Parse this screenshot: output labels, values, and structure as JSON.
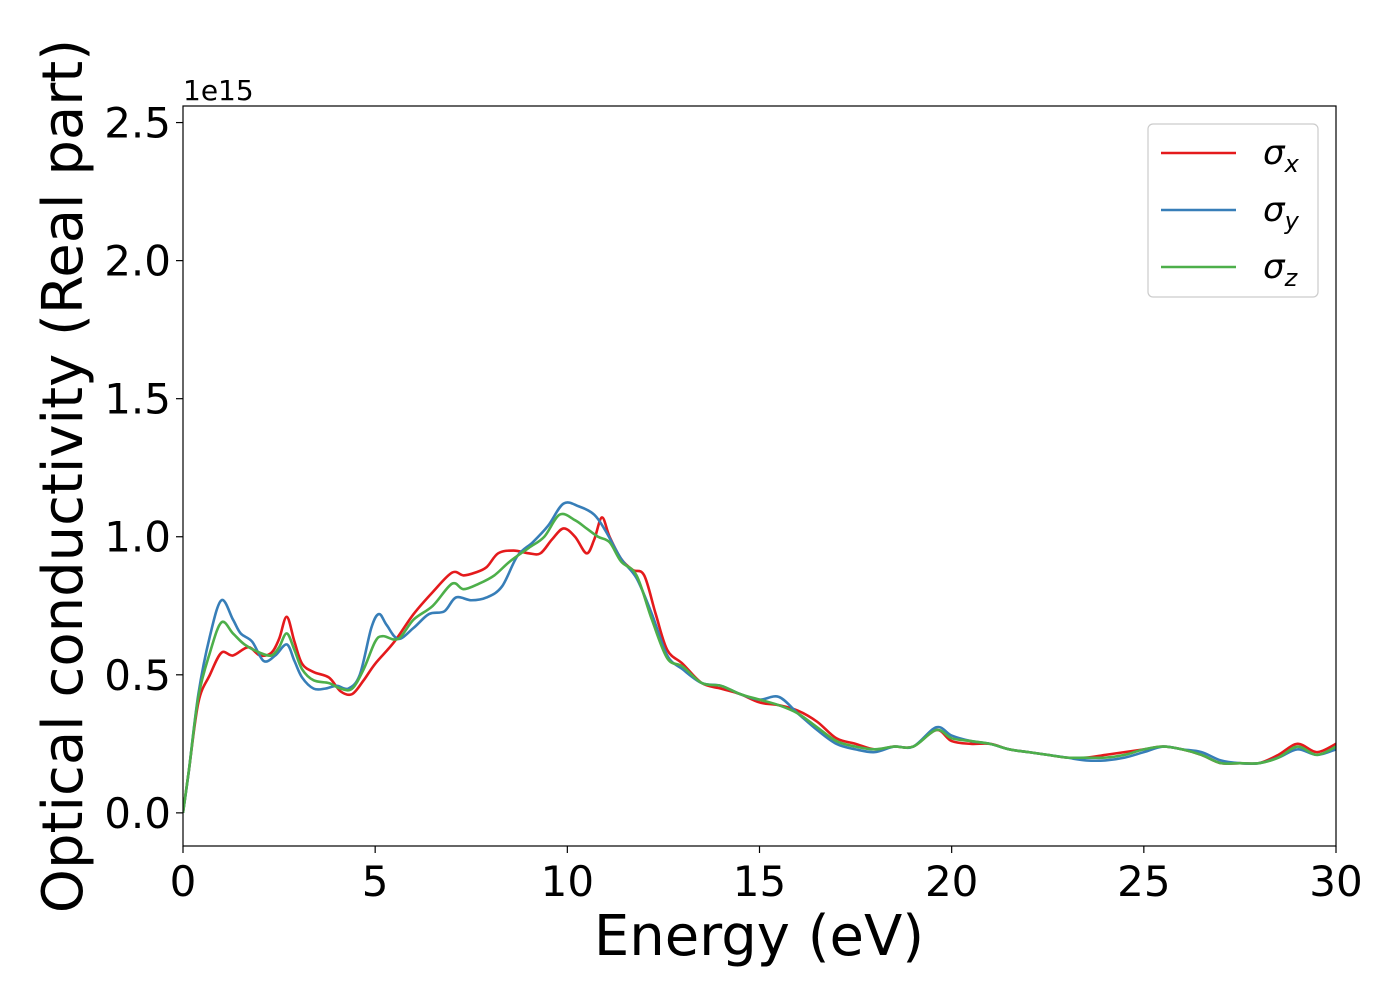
{
  "chart_data": {
    "type": "line",
    "xlabel": "Energy (eV)",
    "ylabel": "Optical conductivity (Real part)",
    "offset_text": "1e15",
    "xlim": [
      0,
      30
    ],
    "ylim": [
      -0.12,
      2.56
    ],
    "x_ticks": [
      0,
      5,
      10,
      15,
      20,
      25,
      30
    ],
    "x_tick_labels": [
      "0",
      "5",
      "10",
      "15",
      "20",
      "25",
      "30"
    ],
    "y_ticks": [
      0.0,
      0.5,
      1.0,
      1.5,
      2.0,
      2.5
    ],
    "y_tick_labels": [
      "0.0",
      "0.5",
      "1.0",
      "1.5",
      "2.0",
      "2.5"
    ],
    "grid": false,
    "legend_position": "top-right",
    "series": [
      {
        "name": "σx",
        "label_main": "σ",
        "label_sub": "x",
        "color": "#e41a1c",
        "points": [
          [
            0,
            0
          ],
          [
            0.15,
            0.15
          ],
          [
            0.4,
            0.4
          ],
          [
            0.7,
            0.5
          ],
          [
            1.0,
            0.58
          ],
          [
            1.3,
            0.57
          ],
          [
            1.7,
            0.6
          ],
          [
            2.0,
            0.57
          ],
          [
            2.3,
            0.58
          ],
          [
            2.5,
            0.63
          ],
          [
            2.7,
            0.71
          ],
          [
            2.9,
            0.62
          ],
          [
            3.1,
            0.54
          ],
          [
            3.4,
            0.51
          ],
          [
            3.8,
            0.49
          ],
          [
            4.1,
            0.44
          ],
          [
            4.4,
            0.43
          ],
          [
            4.7,
            0.48
          ],
          [
            5.0,
            0.54
          ],
          [
            5.5,
            0.62
          ],
          [
            6.0,
            0.72
          ],
          [
            6.5,
            0.8
          ],
          [
            7.0,
            0.87
          ],
          [
            7.3,
            0.86
          ],
          [
            7.6,
            0.87
          ],
          [
            7.9,
            0.89
          ],
          [
            8.2,
            0.94
          ],
          [
            8.6,
            0.95
          ],
          [
            9.0,
            0.94
          ],
          [
            9.3,
            0.94
          ],
          [
            9.6,
            0.99
          ],
          [
            9.9,
            1.03
          ],
          [
            10.2,
            1.0
          ],
          [
            10.5,
            0.94
          ],
          [
            10.7,
            0.99
          ],
          [
            10.9,
            1.07
          ],
          [
            11.1,
            1.0
          ],
          [
            11.4,
            0.92
          ],
          [
            11.7,
            0.88
          ],
          [
            12.0,
            0.86
          ],
          [
            12.3,
            0.72
          ],
          [
            12.6,
            0.59
          ],
          [
            13.0,
            0.54
          ],
          [
            13.5,
            0.47
          ],
          [
            14.0,
            0.45
          ],
          [
            14.5,
            0.43
          ],
          [
            15.0,
            0.4
          ],
          [
            15.5,
            0.39
          ],
          [
            16.0,
            0.37
          ],
          [
            16.5,
            0.33
          ],
          [
            17.0,
            0.27
          ],
          [
            17.5,
            0.25
          ],
          [
            18.0,
            0.23
          ],
          [
            18.5,
            0.24
          ],
          [
            19.0,
            0.24
          ],
          [
            19.6,
            0.3
          ],
          [
            20.0,
            0.26
          ],
          [
            20.5,
            0.25
          ],
          [
            21.0,
            0.25
          ],
          [
            21.5,
            0.23
          ],
          [
            22.0,
            0.22
          ],
          [
            22.5,
            0.21
          ],
          [
            23.0,
            0.2
          ],
          [
            23.5,
            0.2
          ],
          [
            24.0,
            0.21
          ],
          [
            24.5,
            0.22
          ],
          [
            25.0,
            0.23
          ],
          [
            25.5,
            0.24
          ],
          [
            26.0,
            0.23
          ],
          [
            26.5,
            0.21
          ],
          [
            27.0,
            0.18
          ],
          [
            27.5,
            0.18
          ],
          [
            28.0,
            0.18
          ],
          [
            28.5,
            0.21
          ],
          [
            29.0,
            0.25
          ],
          [
            29.5,
            0.22
          ],
          [
            30.0,
            0.25
          ]
        ]
      },
      {
        "name": "σy",
        "label_main": "σ",
        "label_sub": "y",
        "color": "#377eb8",
        "points": [
          [
            0,
            0
          ],
          [
            0.15,
            0.15
          ],
          [
            0.4,
            0.43
          ],
          [
            0.7,
            0.64
          ],
          [
            1.0,
            0.77
          ],
          [
            1.3,
            0.7
          ],
          [
            1.5,
            0.65
          ],
          [
            1.8,
            0.62
          ],
          [
            2.1,
            0.55
          ],
          [
            2.4,
            0.57
          ],
          [
            2.7,
            0.61
          ],
          [
            2.9,
            0.55
          ],
          [
            3.1,
            0.49
          ],
          [
            3.4,
            0.45
          ],
          [
            3.7,
            0.45
          ],
          [
            4.0,
            0.46
          ],
          [
            4.3,
            0.45
          ],
          [
            4.6,
            0.5
          ],
          [
            4.9,
            0.67
          ],
          [
            5.1,
            0.72
          ],
          [
            5.3,
            0.68
          ],
          [
            5.6,
            0.63
          ],
          [
            6.0,
            0.67
          ],
          [
            6.4,
            0.72
          ],
          [
            6.8,
            0.73
          ],
          [
            7.1,
            0.78
          ],
          [
            7.5,
            0.77
          ],
          [
            7.9,
            0.78
          ],
          [
            8.3,
            0.82
          ],
          [
            8.7,
            0.93
          ],
          [
            9.1,
            0.98
          ],
          [
            9.5,
            1.04
          ],
          [
            9.9,
            1.12
          ],
          [
            10.3,
            1.11
          ],
          [
            10.7,
            1.08
          ],
          [
            11.0,
            1.02
          ],
          [
            11.4,
            0.92
          ],
          [
            11.8,
            0.85
          ],
          [
            12.2,
            0.72
          ],
          [
            12.6,
            0.57
          ],
          [
            13.0,
            0.52
          ],
          [
            13.5,
            0.47
          ],
          [
            14.0,
            0.46
          ],
          [
            14.5,
            0.43
          ],
          [
            15.0,
            0.41
          ],
          [
            15.5,
            0.42
          ],
          [
            16.0,
            0.36
          ],
          [
            16.5,
            0.3
          ],
          [
            17.0,
            0.25
          ],
          [
            17.5,
            0.23
          ],
          [
            18.0,
            0.22
          ],
          [
            18.5,
            0.24
          ],
          [
            19.0,
            0.24
          ],
          [
            19.6,
            0.31
          ],
          [
            20.0,
            0.28
          ],
          [
            20.5,
            0.26
          ],
          [
            21.0,
            0.25
          ],
          [
            21.5,
            0.23
          ],
          [
            22.0,
            0.22
          ],
          [
            22.5,
            0.21
          ],
          [
            23.0,
            0.2
          ],
          [
            23.5,
            0.19
          ],
          [
            24.0,
            0.19
          ],
          [
            24.5,
            0.2
          ],
          [
            25.0,
            0.22
          ],
          [
            25.5,
            0.24
          ],
          [
            26.0,
            0.23
          ],
          [
            26.5,
            0.22
          ],
          [
            27.0,
            0.19
          ],
          [
            27.5,
            0.18
          ],
          [
            28.0,
            0.18
          ],
          [
            28.5,
            0.2
          ],
          [
            29.0,
            0.23
          ],
          [
            29.5,
            0.21
          ],
          [
            30.0,
            0.23
          ]
        ]
      },
      {
        "name": "σz",
        "label_main": "σ",
        "label_sub": "z",
        "color": "#4daf4a",
        "points": [
          [
            0,
            0
          ],
          [
            0.15,
            0.15
          ],
          [
            0.4,
            0.42
          ],
          [
            0.7,
            0.58
          ],
          [
            1.0,
            0.69
          ],
          [
            1.3,
            0.65
          ],
          [
            1.6,
            0.61
          ],
          [
            2.0,
            0.58
          ],
          [
            2.3,
            0.57
          ],
          [
            2.5,
            0.6
          ],
          [
            2.7,
            0.65
          ],
          [
            2.9,
            0.59
          ],
          [
            3.1,
            0.52
          ],
          [
            3.4,
            0.48
          ],
          [
            3.8,
            0.47
          ],
          [
            4.1,
            0.45
          ],
          [
            4.4,
            0.45
          ],
          [
            4.7,
            0.52
          ],
          [
            5.0,
            0.62
          ],
          [
            5.2,
            0.64
          ],
          [
            5.6,
            0.63
          ],
          [
            6.0,
            0.7
          ],
          [
            6.5,
            0.75
          ],
          [
            7.0,
            0.83
          ],
          [
            7.3,
            0.81
          ],
          [
            7.7,
            0.83
          ],
          [
            8.1,
            0.86
          ],
          [
            8.5,
            0.91
          ],
          [
            9.0,
            0.96
          ],
          [
            9.4,
            1.0
          ],
          [
            9.8,
            1.08
          ],
          [
            10.2,
            1.06
          ],
          [
            10.5,
            1.03
          ],
          [
            10.8,
            1.0
          ],
          [
            11.1,
            0.98
          ],
          [
            11.4,
            0.91
          ],
          [
            11.8,
            0.86
          ],
          [
            12.2,
            0.7
          ],
          [
            12.6,
            0.56
          ],
          [
            13.0,
            0.53
          ],
          [
            13.5,
            0.47
          ],
          [
            14.0,
            0.46
          ],
          [
            14.5,
            0.43
          ],
          [
            15.0,
            0.41
          ],
          [
            15.5,
            0.39
          ],
          [
            16.0,
            0.36
          ],
          [
            16.5,
            0.31
          ],
          [
            17.0,
            0.26
          ],
          [
            17.5,
            0.24
          ],
          [
            18.0,
            0.23
          ],
          [
            18.5,
            0.24
          ],
          [
            19.0,
            0.24
          ],
          [
            19.6,
            0.3
          ],
          [
            20.0,
            0.27
          ],
          [
            20.5,
            0.26
          ],
          [
            21.0,
            0.25
          ],
          [
            21.5,
            0.23
          ],
          [
            22.0,
            0.22
          ],
          [
            22.5,
            0.21
          ],
          [
            23.0,
            0.2
          ],
          [
            23.5,
            0.2
          ],
          [
            24.0,
            0.2
          ],
          [
            24.5,
            0.21
          ],
          [
            25.0,
            0.23
          ],
          [
            25.5,
            0.24
          ],
          [
            26.0,
            0.23
          ],
          [
            26.5,
            0.21
          ],
          [
            27.0,
            0.18
          ],
          [
            27.5,
            0.18
          ],
          [
            28.0,
            0.18
          ],
          [
            28.5,
            0.2
          ],
          [
            29.0,
            0.24
          ],
          [
            29.5,
            0.21
          ],
          [
            30.0,
            0.24
          ]
        ]
      }
    ]
  }
}
